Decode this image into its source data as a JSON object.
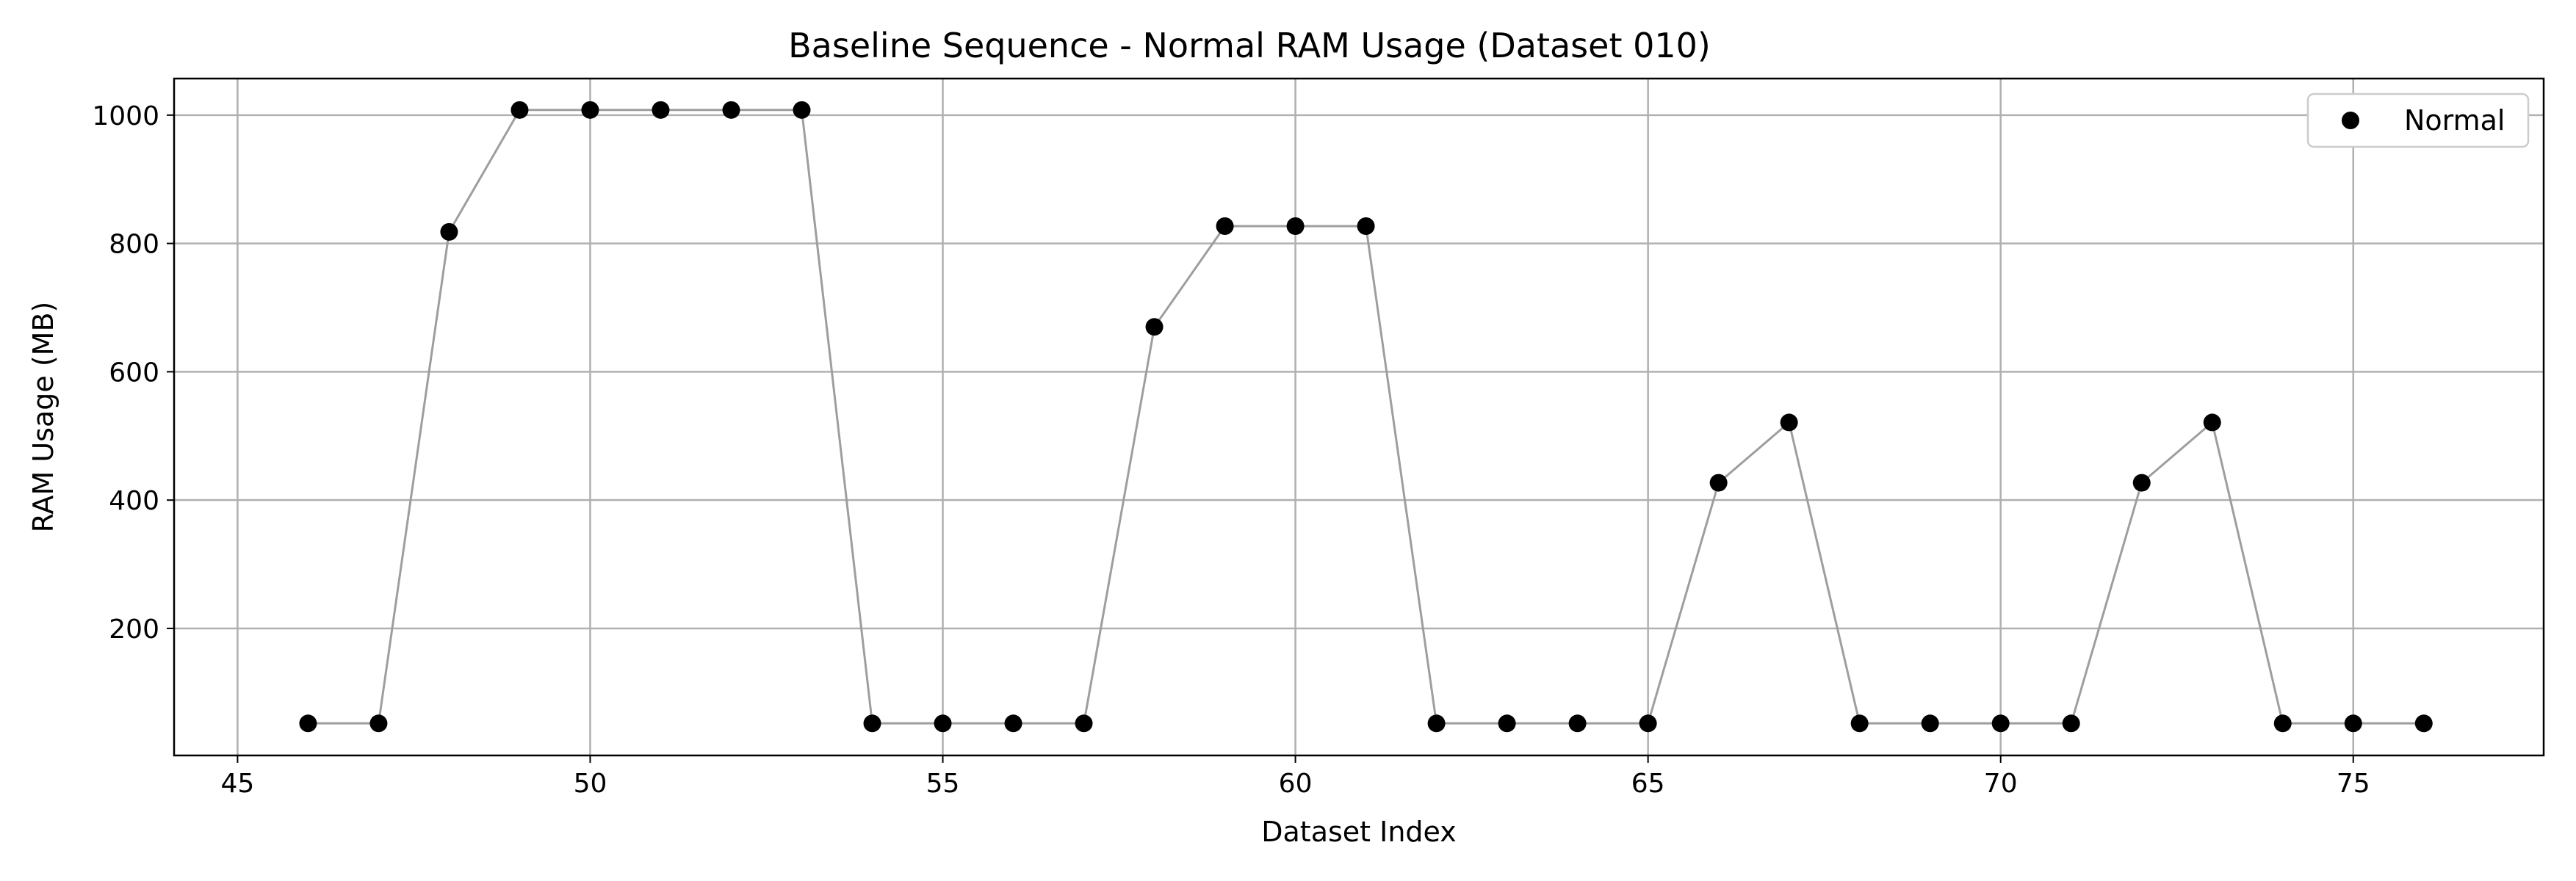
{
  "chart_data": {
    "type": "scatter",
    "title": "Baseline Sequence - Normal RAM Usage (Dataset 010)",
    "xlabel": "Dataset Index",
    "ylabel": "RAM Usage (MB)",
    "xlim": [
      44.1,
      77.7
    ],
    "ylim": [
      2,
      1057
    ],
    "xticks": [
      45,
      50,
      55,
      60,
      65,
      70,
      75
    ],
    "yticks": [
      200,
      400,
      600,
      800,
      1000
    ],
    "grid": true,
    "legend_position": "top-right",
    "connecting_line_color": "#9e9e9e",
    "series": [
      {
        "name": "Normal",
        "color": "#000000",
        "x": [
          46,
          47,
          48,
          49,
          50,
          51,
          52,
          53,
          54,
          55,
          56,
          57,
          58,
          59,
          60,
          61,
          62,
          63,
          64,
          65,
          66,
          67,
          68,
          69,
          70,
          71,
          72,
          73,
          74,
          75,
          76
        ],
        "y": [
          52,
          52,
          818,
          1008,
          1008,
          1008,
          1008,
          1008,
          52,
          52,
          52,
          52,
          670,
          827,
          827,
          827,
          52,
          52,
          52,
          52,
          427,
          521,
          52,
          52,
          52,
          52,
          427,
          521,
          52,
          52,
          52
        ]
      }
    ]
  }
}
